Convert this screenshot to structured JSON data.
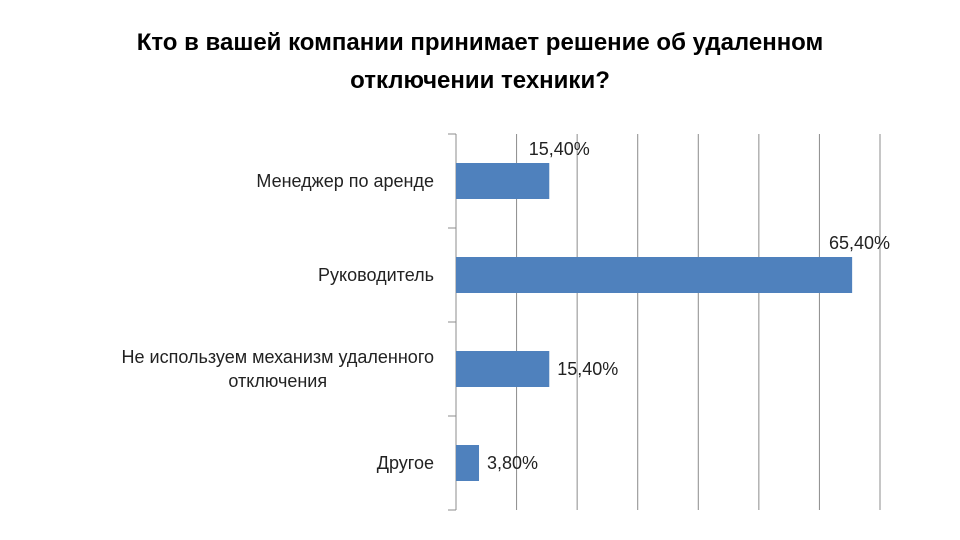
{
  "chart_data": {
    "type": "bar",
    "orientation": "horizontal",
    "title": "Кто в вашей компании принимает решение об удаленном\nотключении техники?",
    "categories": [
      [
        "Менеджер по аренде"
      ],
      [
        "Руководитель"
      ],
      [
        "Не используем механизм удаленного",
        "отключения"
      ],
      [
        "Другое"
      ]
    ],
    "values": [
      15.4,
      65.4,
      15.4,
      3.8
    ],
    "data_labels": [
      "15,40%",
      "65,40%",
      "15,40%",
      "3,80%"
    ],
    "xlim": [
      0,
      70
    ],
    "major_unit": 10,
    "grid": true,
    "legend": false,
    "bar_color": "#4F81BD",
    "grid_color": "#8C8C8C"
  }
}
